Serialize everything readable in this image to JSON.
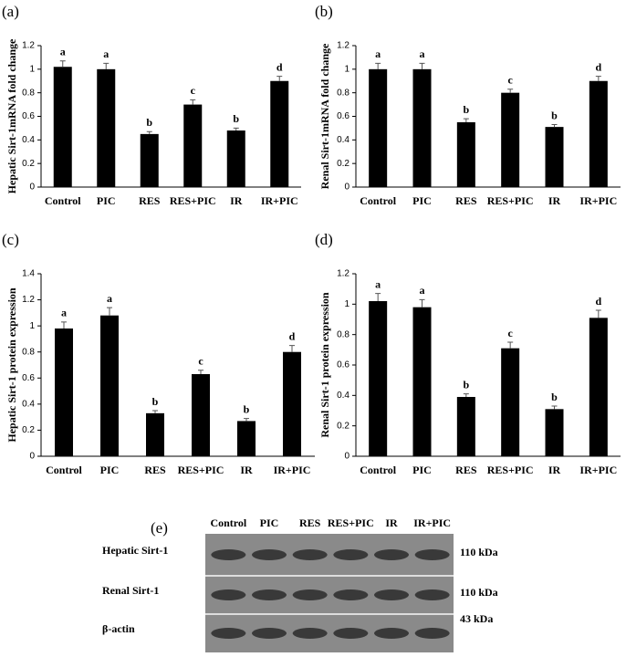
{
  "chart_data": [
    {
      "type": "bar",
      "panel": "(a)",
      "ylabel": "Hepatic Sirt-1mRNA fold change",
      "categories": [
        "Control",
        "PIC",
        "RES",
        "RES+PIC",
        "IR",
        "IR+PIC"
      ],
      "values": [
        1.02,
        1.0,
        0.45,
        0.7,
        0.48,
        0.9
      ],
      "errors": [
        0.05,
        0.05,
        0.02,
        0.04,
        0.02,
        0.04
      ],
      "letters": [
        "a",
        "a",
        "b",
        "c",
        "b",
        "d"
      ],
      "color": "#000000",
      "ylim": [
        0,
        1.2
      ],
      "yticks": [
        0,
        0.2,
        0.4,
        0.6,
        0.8,
        1,
        1.2
      ]
    },
    {
      "type": "bar",
      "panel": "(b)",
      "ylabel": "Renal Sirt-1mRNA fold change",
      "categories": [
        "Control",
        "PIC",
        "RES",
        "RES+PIC",
        "IR",
        "IR+PIC"
      ],
      "values": [
        1.0,
        1.0,
        0.55,
        0.8,
        0.51,
        0.9
      ],
      "errors": [
        0.05,
        0.05,
        0.03,
        0.03,
        0.02,
        0.04
      ],
      "letters": [
        "a",
        "a",
        "b",
        "c",
        "b",
        "d"
      ],
      "color": "#000000",
      "ylim": [
        0,
        1.2
      ],
      "yticks": [
        0,
        0.2,
        0.4,
        0.6,
        0.8,
        1,
        1.2
      ]
    },
    {
      "type": "bar",
      "panel": "(c)",
      "ylabel": "Hepatic Sirt-1 protein expression",
      "categories": [
        "Control",
        "PIC",
        "RES",
        "RES+PIC",
        "IR",
        "IR+PIC"
      ],
      "values": [
        0.98,
        1.08,
        0.33,
        0.63,
        0.27,
        0.8
      ],
      "errors": [
        0.05,
        0.06,
        0.02,
        0.03,
        0.02,
        0.05
      ],
      "letters": [
        "a",
        "a",
        "b",
        "c",
        "b",
        "d"
      ],
      "color": "#000000",
      "ylim": [
        0,
        1.4
      ],
      "yticks": [
        0,
        0.2,
        0.4,
        0.6,
        0.8,
        1,
        1.2,
        1.4
      ]
    },
    {
      "type": "bar",
      "panel": "(d)",
      "ylabel": "Renal Sirt-1 protein expression",
      "categories": [
        "Control",
        "PIC",
        "RES",
        "RES+PIC",
        "IR",
        "IR+PIC"
      ],
      "values": [
        1.02,
        0.98,
        0.39,
        0.71,
        0.31,
        0.91
      ],
      "errors": [
        0.05,
        0.05,
        0.02,
        0.04,
        0.02,
        0.05
      ],
      "letters": [
        "a",
        "a",
        "b",
        "c",
        "b",
        "d"
      ],
      "color": "#000000",
      "ylim": [
        0,
        1.2
      ],
      "yticks": [
        0,
        0.2,
        0.4,
        0.6,
        0.8,
        1,
        1.2
      ]
    }
  ],
  "blot": {
    "panel": "(e)",
    "lanes": [
      "Control",
      "PIC",
      "RES",
      "RES+PIC",
      "IR",
      "IR+PIC"
    ],
    "rows": [
      {
        "name": "Hepatic Sirt-1",
        "size": "110 kDa"
      },
      {
        "name": "Renal Sirt-1",
        "size": "110 kDa"
      },
      {
        "name": "β-actin",
        "size": "43 kDa"
      }
    ]
  }
}
